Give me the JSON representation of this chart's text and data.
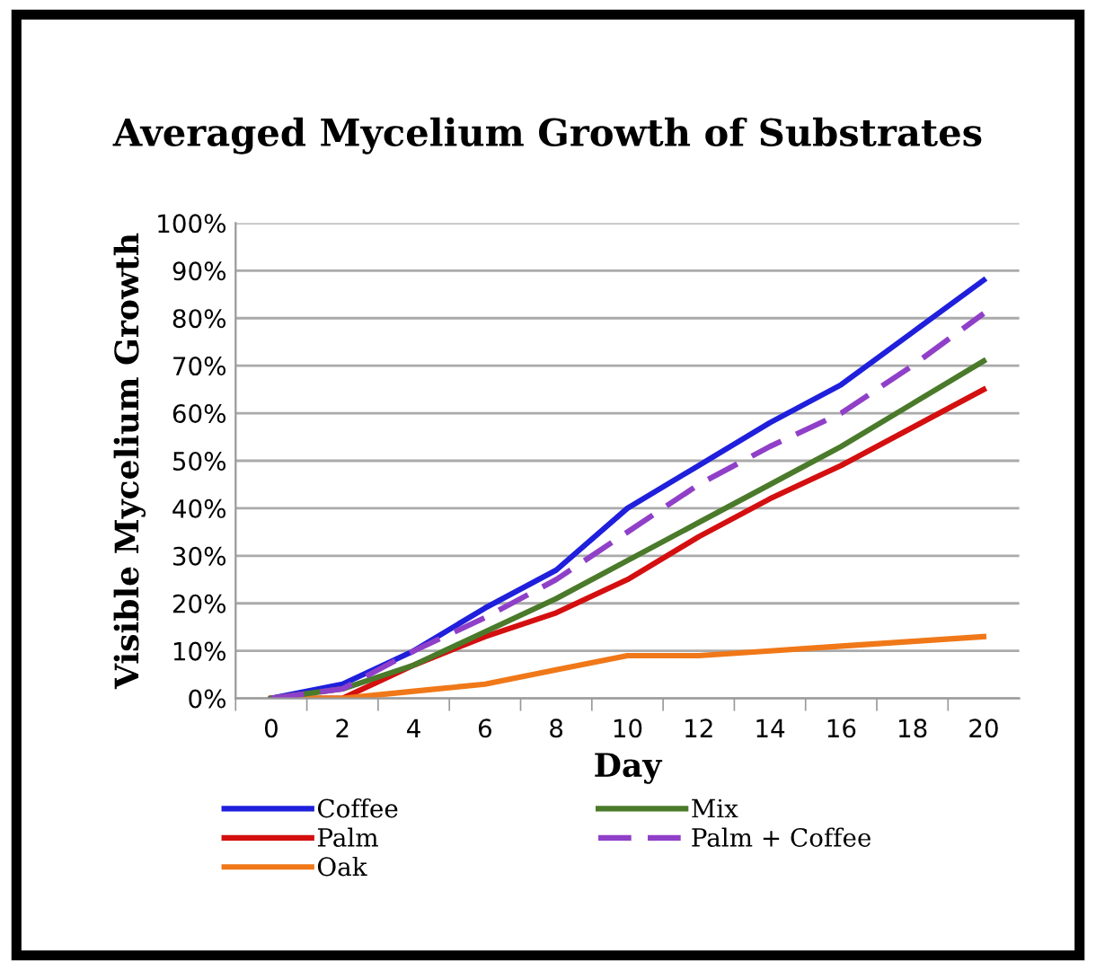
{
  "chart_data": {
    "type": "line",
    "title": "Averaged Mycelium Growth of Substrates",
    "xlabel": "Day",
    "ylabel": "Visible Mycelium Growth",
    "categories": [
      "0",
      "2",
      "4",
      "6",
      "8",
      "10",
      "12",
      "14",
      "16",
      "18",
      "20"
    ],
    "series": [
      {
        "name": "Coffee",
        "color": "#1f1fdc",
        "values": [
          0,
          3,
          10,
          19,
          27,
          40,
          49,
          58,
          66,
          77,
          88
        ]
      },
      {
        "name": "Palm",
        "color": "#d40f0f",
        "values": [
          0,
          0,
          7,
          13,
          18,
          25,
          34,
          42,
          49,
          57,
          65
        ]
      },
      {
        "name": "Oak",
        "color": "#f07818",
        "values": [
          0,
          0,
          1.5,
          3,
          6,
          9,
          9,
          10,
          11,
          12,
          13
        ]
      },
      {
        "name": "Mix",
        "color": "#4a7a2a",
        "values": [
          0,
          2,
          7,
          14,
          21,
          29,
          37,
          45,
          53,
          62,
          71
        ]
      },
      {
        "name": "Palm + Coffee",
        "color": "#9040c8",
        "values": [
          0,
          2,
          10,
          17,
          25,
          35,
          45,
          53,
          60,
          70,
          81
        ],
        "line_style": "dashed"
      }
    ],
    "ylim": [
      0,
      100
    ],
    "yticks": [
      {
        "value": 0,
        "label": "0%"
      },
      {
        "value": 10,
        "label": "10%"
      },
      {
        "value": 20,
        "label": "20%"
      },
      {
        "value": 30,
        "label": "30%"
      },
      {
        "value": 40,
        "label": "40%"
      },
      {
        "value": 50,
        "label": "50%"
      },
      {
        "value": 60,
        "label": "60%"
      },
      {
        "value": 70,
        "label": "70%"
      },
      {
        "value": 80,
        "label": "80%"
      },
      {
        "value": 90,
        "label": "90%"
      },
      {
        "value": 100,
        "label": "100%"
      }
    ],
    "grid": "y",
    "legend": "bottom",
    "marker": "none",
    "line_style": "solid"
  }
}
